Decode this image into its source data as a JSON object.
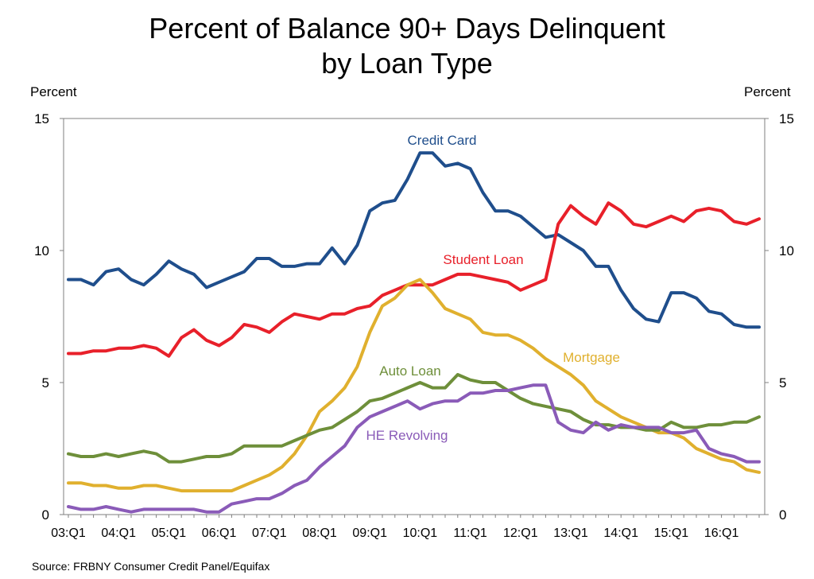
{
  "title_line1": "Percent of Balance 90+ Days Delinquent",
  "title_line2": "by Loan Type",
  "left_axis_label": "Percent",
  "right_axis_label": "Percent",
  "source": "Source: FRBNY Consumer Credit Panel/Equifax",
  "chart_data": {
    "type": "line",
    "title": "Percent of Balance 90+ Days Delinquent by Loan Type",
    "ylabel": "Percent",
    "ylim": [
      0,
      15
    ],
    "yticks": [
      0,
      5,
      10,
      15
    ],
    "x_start": "2003:Q1",
    "x_count": 56,
    "xtick_labels": [
      "03:Q1",
      "04:Q1",
      "05:Q1",
      "06:Q1",
      "07:Q1",
      "08:Q1",
      "09:Q1",
      "10:Q1",
      "11:Q1",
      "12:Q1",
      "13:Q1",
      "14:Q1",
      "15:Q1",
      "16:Q1"
    ],
    "grid": false,
    "series": [
      {
        "name": "Credit Card",
        "color": "#1f4e8c",
        "values": [
          8.9,
          8.9,
          8.7,
          9.2,
          9.3,
          8.9,
          8.7,
          9.1,
          9.6,
          9.3,
          9.1,
          8.6,
          8.8,
          9.0,
          9.2,
          9.7,
          9.7,
          9.4,
          9.4,
          9.5,
          9.5,
          10.1,
          9.5,
          10.2,
          11.5,
          11.8,
          11.9,
          12.7,
          13.7,
          13.7,
          13.2,
          13.3,
          13.1,
          12.2,
          11.5,
          11.5,
          11.3,
          10.9,
          10.5,
          10.6,
          10.3,
          10.0,
          9.4,
          9.4,
          8.5,
          7.8,
          7.4,
          7.3,
          8.4,
          8.4,
          8.2,
          7.7,
          7.6,
          7.2,
          7.1,
          7.1
        ]
      },
      {
        "name": "Student Loan",
        "color": "#e8202a",
        "values": [
          6.1,
          6.1,
          6.2,
          6.2,
          6.3,
          6.3,
          6.4,
          6.3,
          6.0,
          6.7,
          7.0,
          6.6,
          6.4,
          6.7,
          7.2,
          7.1,
          6.9,
          7.3,
          7.6,
          7.5,
          7.4,
          7.6,
          7.6,
          7.8,
          7.9,
          8.3,
          8.5,
          8.7,
          8.7,
          8.7,
          8.9,
          9.1,
          9.1,
          9.0,
          8.9,
          8.8,
          8.5,
          8.7,
          8.9,
          11.0,
          11.7,
          11.3,
          11.0,
          11.8,
          11.5,
          11.0,
          10.9,
          11.1,
          11.3,
          11.1,
          11.5,
          11.6,
          11.5,
          11.1,
          11.0,
          11.2
        ]
      },
      {
        "name": "Mortgage",
        "color": "#e0b02e",
        "values": [
          1.2,
          1.2,
          1.1,
          1.1,
          1.0,
          1.0,
          1.1,
          1.1,
          1.0,
          0.9,
          0.9,
          0.9,
          0.9,
          0.9,
          1.1,
          1.3,
          1.5,
          1.8,
          2.3,
          3.0,
          3.9,
          4.3,
          4.8,
          5.6,
          6.9,
          7.9,
          8.2,
          8.7,
          8.9,
          8.4,
          7.8,
          7.6,
          7.4,
          6.9,
          6.8,
          6.8,
          6.6,
          6.3,
          5.9,
          5.6,
          5.3,
          4.9,
          4.3,
          4.0,
          3.7,
          3.5,
          3.3,
          3.1,
          3.1,
          2.9,
          2.5,
          2.3,
          2.1,
          2.0,
          1.7,
          1.6
        ]
      },
      {
        "name": "Auto Loan",
        "color": "#6e8f3a",
        "values": [
          2.3,
          2.2,
          2.2,
          2.3,
          2.2,
          2.3,
          2.4,
          2.3,
          2.0,
          2.0,
          2.1,
          2.2,
          2.2,
          2.3,
          2.6,
          2.6,
          2.6,
          2.6,
          2.8,
          3.0,
          3.2,
          3.3,
          3.6,
          3.9,
          4.3,
          4.4,
          4.6,
          4.8,
          5.0,
          4.8,
          4.8,
          5.3,
          5.1,
          5.0,
          5.0,
          4.7,
          4.4,
          4.2,
          4.1,
          4.0,
          3.9,
          3.6,
          3.4,
          3.4,
          3.3,
          3.3,
          3.2,
          3.2,
          3.5,
          3.3,
          3.3,
          3.4,
          3.4,
          3.5,
          3.5,
          3.7
        ]
      },
      {
        "name": "HE Revolving",
        "color": "#8a5bb8",
        "values": [
          0.3,
          0.2,
          0.2,
          0.3,
          0.2,
          0.1,
          0.2,
          0.2,
          0.2,
          0.2,
          0.2,
          0.1,
          0.1,
          0.4,
          0.5,
          0.6,
          0.6,
          0.8,
          1.1,
          1.3,
          1.8,
          2.2,
          2.6,
          3.3,
          3.7,
          3.9,
          4.1,
          4.3,
          4.0,
          4.2,
          4.3,
          4.3,
          4.6,
          4.6,
          4.7,
          4.7,
          4.8,
          4.9,
          4.9,
          3.5,
          3.2,
          3.1,
          3.5,
          3.2,
          3.4,
          3.3,
          3.3,
          3.3,
          3.1,
          3.1,
          3.2,
          2.5,
          2.3,
          2.2,
          2.0,
          2.0
        ]
      }
    ],
    "annotations": [
      {
        "series": "Credit Card",
        "text": "Credit Card"
      },
      {
        "series": "Student Loan",
        "text": "Student Loan"
      },
      {
        "series": "Mortgage",
        "text": "Mortgage"
      },
      {
        "series": "Auto Loan",
        "text": "Auto Loan"
      },
      {
        "series": "HE Revolving",
        "text": "HE Revolving"
      }
    ]
  }
}
